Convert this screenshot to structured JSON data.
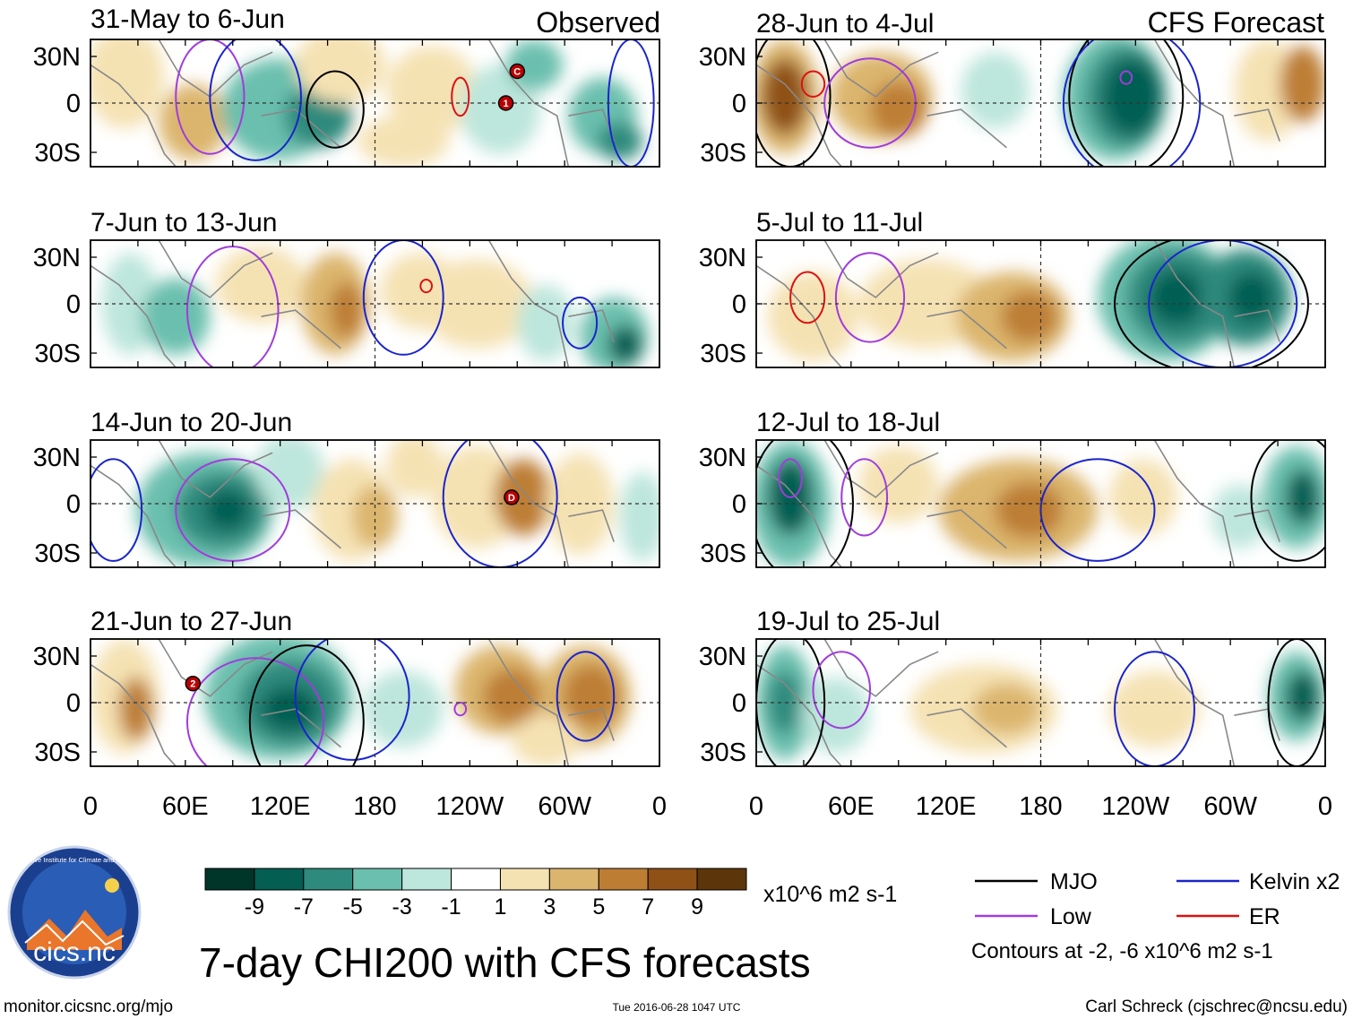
{
  "title": "7-day CHI200 with CFS forecasts",
  "columns": {
    "left_header": "Observed",
    "right_header": "CFS Forecast"
  },
  "left_panels": [
    {
      "date_range": "31-May to 6-Jun"
    },
    {
      "date_range": "7-Jun to 13-Jun"
    },
    {
      "date_range": "14-Jun to 20-Jun"
    },
    {
      "date_range": "21-Jun to 27-Jun"
    }
  ],
  "right_panels": [
    {
      "date_range": "28-Jun to 4-Jul"
    },
    {
      "date_range": "5-Jul to 11-Jul"
    },
    {
      "date_range": "12-Jul to 18-Jul"
    },
    {
      "date_range": "19-Jul to 25-Jul"
    }
  ],
  "lat_labels": [
    "30N",
    "0",
    "30S"
  ],
  "lon_labels": [
    "0",
    "60E",
    "120E",
    "180",
    "120W",
    "60W",
    "0"
  ],
  "storm_markers": [
    {
      "panel": "left-1",
      "label": "1"
    },
    {
      "panel": "left-1",
      "label": "C"
    },
    {
      "panel": "left-3",
      "label": "D"
    },
    {
      "panel": "left-4",
      "label": "2"
    }
  ],
  "colorbar": {
    "unit": "x10^6 m2 s-1",
    "tick_labels": [
      "-9",
      "-7",
      "-5",
      "-3",
      "-1",
      "1",
      "3",
      "5",
      "7",
      "9"
    ],
    "colors": [
      "#00352a",
      "#045e52",
      "#2e8a7d",
      "#6abfae",
      "#bde6dc",
      "#ffffff",
      "#f5e2b3",
      "#dbb56d",
      "#bd7e34",
      "#8f5116",
      "#5c360a"
    ]
  },
  "legend": {
    "items": [
      {
        "label": "MJO",
        "color": "#000000"
      },
      {
        "label": "Kelvin x2",
        "color": "#1a24cc"
      },
      {
        "label": "Low",
        "color": "#a03cdc"
      },
      {
        "label": "ER",
        "color": "#dd1111"
      }
    ],
    "note": "Contours at -2, -6 x10^6 m2 s-1"
  },
  "logo": {
    "text": "cics.nc",
    "ring_text": "Cooperative Institute for Climate and Satellites"
  },
  "footer": {
    "url": "monitor.cicsnc.org/mjo",
    "timestamp": "Tue 2016-06-28 1047 UTC",
    "credit": "Carl Schreck (cjschrec@ncsu.edu)"
  }
}
